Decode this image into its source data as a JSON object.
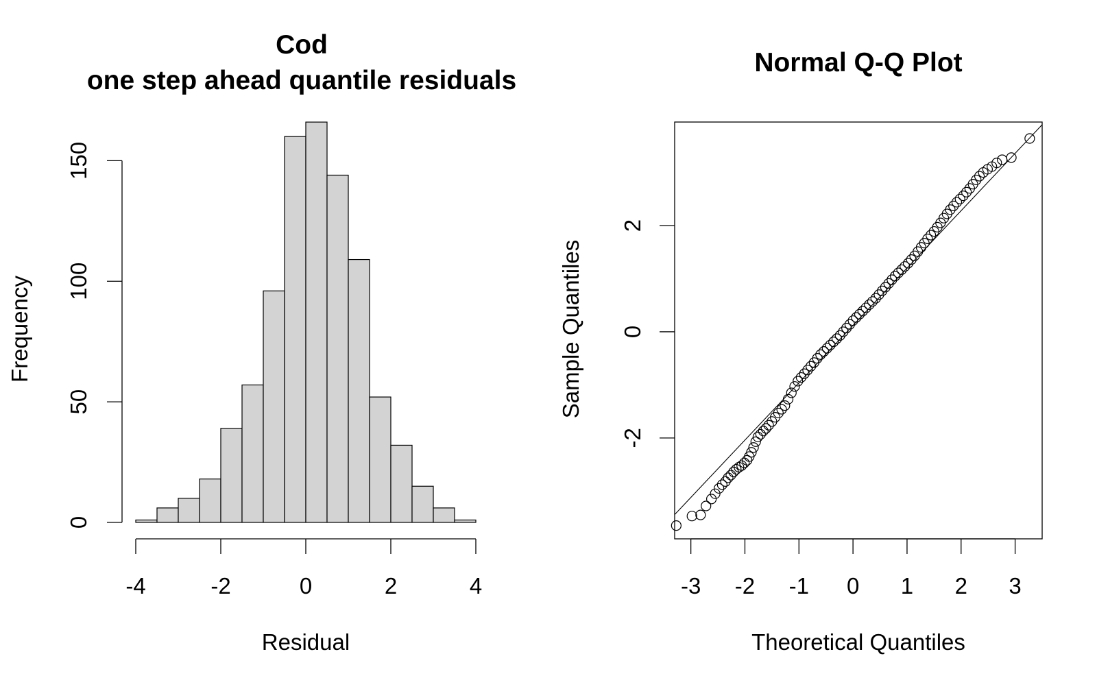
{
  "chart_data": [
    {
      "type": "bar",
      "title_lines": [
        "Cod",
        "one step ahead quantile residuals"
      ],
      "xlabel": "Residual",
      "ylabel": "Frequency",
      "xlim": [
        -4,
        4
      ],
      "ylim": [
        0,
        170
      ],
      "x_ticks": [
        "-4",
        "-2",
        "0",
        "2",
        "4"
      ],
      "y_ticks": [
        "0",
        "50",
        "100",
        "150"
      ],
      "bins": [
        {
          "from": -4.0,
          "to": -3.5,
          "count": 1
        },
        {
          "from": -3.5,
          "to": -3.0,
          "count": 6
        },
        {
          "from": -3.0,
          "to": -2.5,
          "count": 10
        },
        {
          "from": -2.5,
          "to": -2.0,
          "count": 18
        },
        {
          "from": -2.0,
          "to": -1.5,
          "count": 39
        },
        {
          "from": -1.5,
          "to": -1.0,
          "count": 57
        },
        {
          "from": -1.0,
          "to": -0.5,
          "count": 96
        },
        {
          "from": -0.5,
          "to": 0.0,
          "count": 160
        },
        {
          "from": 0.0,
          "to": 0.5,
          "count": 166
        },
        {
          "from": 0.5,
          "to": 1.0,
          "count": 144
        },
        {
          "from": 1.0,
          "to": 1.5,
          "count": 109
        },
        {
          "from": 1.5,
          "to": 2.0,
          "count": 52
        },
        {
          "from": 2.0,
          "to": 2.5,
          "count": 32
        },
        {
          "from": 2.5,
          "to": 3.0,
          "count": 15
        },
        {
          "from": 3.0,
          "to": 3.5,
          "count": 6
        },
        {
          "from": 3.5,
          "to": 4.0,
          "count": 1
        }
      ],
      "bar_color": "#d3d3d3",
      "grid": false
    },
    {
      "type": "scatter",
      "title": "Normal Q-Q Plot",
      "xlabel": "Theoretical Quantiles",
      "ylabel": "Sample Quantiles",
      "xlim": [
        -3.3,
        3.5
      ],
      "ylim": [
        -3.9,
        3.95
      ],
      "x_ticks": [
        "-3",
        "-2",
        "-1",
        "0",
        "1",
        "2",
        "3"
      ],
      "y_ticks": [
        "-2",
        "0",
        "2"
      ],
      "reference_line": {
        "intercept": 0.12,
        "slope": 1.08
      },
      "points": [
        [
          -3.27,
          -3.65
        ],
        [
          -2.98,
          -3.47
        ],
        [
          -2.82,
          -3.45
        ],
        [
          -2.72,
          -3.28
        ],
        [
          -2.62,
          -3.15
        ],
        [
          -2.55,
          -3.05
        ],
        [
          -2.48,
          -2.95
        ],
        [
          -2.42,
          -2.88
        ],
        [
          -2.36,
          -2.82
        ],
        [
          -2.31,
          -2.75
        ],
        [
          -2.26,
          -2.7
        ],
        [
          -2.21,
          -2.64
        ],
        [
          -2.16,
          -2.59
        ],
        [
          -2.11,
          -2.55
        ],
        [
          -2.06,
          -2.52
        ],
        [
          -2.01,
          -2.47
        ],
        [
          -1.96,
          -2.42
        ],
        [
          -1.92,
          -2.35
        ],
        [
          -1.88,
          -2.27
        ],
        [
          -1.84,
          -2.18
        ],
        [
          -1.8,
          -2.07
        ],
        [
          -1.76,
          -1.98
        ],
        [
          -1.71,
          -1.93
        ],
        [
          -1.66,
          -1.87
        ],
        [
          -1.61,
          -1.82
        ],
        [
          -1.56,
          -1.76
        ],
        [
          -1.5,
          -1.69
        ],
        [
          -1.44,
          -1.61
        ],
        [
          -1.38,
          -1.53
        ],
        [
          -1.32,
          -1.46
        ],
        [
          -1.26,
          -1.39
        ],
        [
          -1.2,
          -1.27
        ],
        [
          -1.14,
          -1.15
        ],
        [
          -1.08,
          -1.03
        ],
        [
          -1.02,
          -0.93
        ],
        [
          -0.96,
          -0.86
        ],
        [
          -0.9,
          -0.79
        ],
        [
          -0.84,
          -0.72
        ],
        [
          -0.78,
          -0.65
        ],
        [
          -0.72,
          -0.58
        ],
        [
          -0.66,
          -0.5
        ],
        [
          -0.6,
          -0.43
        ],
        [
          -0.54,
          -0.37
        ],
        [
          -0.48,
          -0.31
        ],
        [
          -0.42,
          -0.25
        ],
        [
          -0.36,
          -0.19
        ],
        [
          -0.3,
          -0.13
        ],
        [
          -0.24,
          -0.07
        ],
        [
          -0.18,
          0.0
        ],
        [
          -0.12,
          0.07
        ],
        [
          -0.06,
          0.14
        ],
        [
          0.0,
          0.21
        ],
        [
          0.06,
          0.27
        ],
        [
          0.12,
          0.33
        ],
        [
          0.18,
          0.39
        ],
        [
          0.24,
          0.45
        ],
        [
          0.3,
          0.51
        ],
        [
          0.36,
          0.57
        ],
        [
          0.42,
          0.63
        ],
        [
          0.48,
          0.7
        ],
        [
          0.54,
          0.77
        ],
        [
          0.6,
          0.84
        ],
        [
          0.66,
          0.91
        ],
        [
          0.72,
          0.98
        ],
        [
          0.78,
          1.05
        ],
        [
          0.84,
          1.11
        ],
        [
          0.9,
          1.17
        ],
        [
          0.96,
          1.23
        ],
        [
          1.02,
          1.29
        ],
        [
          1.08,
          1.36
        ],
        [
          1.14,
          1.43
        ],
        [
          1.2,
          1.51
        ],
        [
          1.26,
          1.59
        ],
        [
          1.32,
          1.67
        ],
        [
          1.38,
          1.75
        ],
        [
          1.44,
          1.82
        ],
        [
          1.5,
          1.89
        ],
        [
          1.56,
          1.97
        ],
        [
          1.62,
          2.05
        ],
        [
          1.68,
          2.14
        ],
        [
          1.74,
          2.22
        ],
        [
          1.8,
          2.3
        ],
        [
          1.86,
          2.37
        ],
        [
          1.92,
          2.44
        ],
        [
          1.98,
          2.5
        ],
        [
          2.04,
          2.56
        ],
        [
          2.1,
          2.63
        ],
        [
          2.16,
          2.7
        ],
        [
          2.22,
          2.78
        ],
        [
          2.28,
          2.86
        ],
        [
          2.34,
          2.93
        ],
        [
          2.41,
          3.0
        ],
        [
          2.49,
          3.06
        ],
        [
          2.57,
          3.11
        ],
        [
          2.66,
          3.18
        ],
        [
          2.76,
          3.24
        ],
        [
          2.93,
          3.28
        ],
        [
          3.27,
          3.64
        ]
      ],
      "grid": false
    }
  ]
}
